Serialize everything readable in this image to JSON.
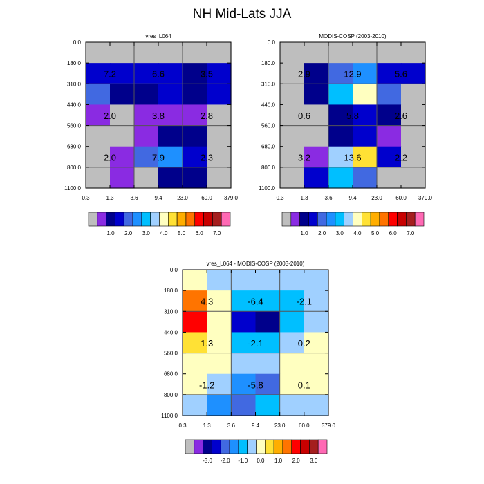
{
  "figure": {
    "title": "NH Mid-Lats JJA",
    "palette": {
      "missing": "#bebebe",
      "main_colors": [
        "#8a2be2",
        "#00008b",
        "#0000cd",
        "#4169e1",
        "#1e90ff",
        "#00bfff",
        "#a0d0ff",
        "#ffffc0",
        "#ffe135",
        "#ffae00",
        "#ff7400",
        "#ff0000",
        "#c80000",
        "#a51e1e",
        "#ff69b4"
      ],
      "diff_colors": [
        "#8a2be2",
        "#00008b",
        "#0000cd",
        "#4169e1",
        "#1e90ff",
        "#00bfff",
        "#a0d0ff",
        "#ffffc0",
        "#ffe135",
        "#ffae00",
        "#ff7400",
        "#ff0000",
        "#c80000",
        "#a51e1e",
        "#ff69b4"
      ],
      "main_color_codes": [
        "V",
        "N",
        "B",
        "R",
        "D",
        "S",
        "L",
        "Y",
        "G",
        "O",
        "o",
        "r",
        "k",
        "b",
        "P"
      ],
      "diff_color_codes": [
        "V",
        "N",
        "B",
        "R",
        "D",
        "S",
        "L",
        "Y",
        "G",
        "O",
        "o",
        "r",
        "k",
        "b",
        "P"
      ]
    },
    "main_colorbar_labels": [
      "1.0",
      "2.0",
      "3.0",
      "4.0",
      "5.0",
      "6.0",
      "7.0"
    ],
    "diff_colorbar_labels": [
      "-3.0",
      "-2.0",
      "-1.0",
      "0.0",
      "1.0",
      "2.0",
      "3.0"
    ],
    "x_ticks": [
      "0.3",
      "1.3",
      "3.6",
      "9.4",
      "23.0",
      "60.0",
      "379.0"
    ],
    "y_ticks": [
      "0.0",
      "180.0",
      "310.0",
      "440.0",
      "560.0",
      "680.0",
      "800.0",
      "1100.0"
    ]
  },
  "chart_data": [
    {
      "type": "heatmap",
      "title": "vres_L064",
      "xlabel": "",
      "ylabel": "",
      "x_bins": [
        "0.3",
        "1.3",
        "3.6",
        "9.4",
        "23.0",
        "60.0",
        "379.0"
      ],
      "y_bins": [
        "0.0",
        "180.0",
        "310.0",
        "440.0",
        "560.0",
        "680.0",
        "800.0",
        "1100.0"
      ],
      "grid": true,
      "colorbar": "main",
      "color_codes": [
        "______",
        "BBBBNB",
        "RNNBNB",
        "V_VVV_",
        "__VNN_",
        "_VRDB_",
        "_V_NN_"
      ],
      "box_labels": [
        {
          "row": 0,
          "col": 0,
          "value": "7.2"
        },
        {
          "row": 0,
          "col": 1,
          "value": "6.6"
        },
        {
          "row": 0,
          "col": 2,
          "value": "3.5"
        },
        {
          "row": 1,
          "col": 0,
          "value": "2.0"
        },
        {
          "row": 1,
          "col": 1,
          "value": "3.8"
        },
        {
          "row": 1,
          "col": 2,
          "value": "2.8"
        },
        {
          "row": 2,
          "col": 0,
          "value": "2.0"
        },
        {
          "row": 2,
          "col": 1,
          "value": "7.9"
        },
        {
          "row": 2,
          "col": 2,
          "value": "2.3"
        }
      ]
    },
    {
      "type": "heatmap",
      "title": "MODIS-COSP (2003-2010)",
      "xlabel": "",
      "ylabel": "",
      "x_bins": [
        "0.3",
        "1.3",
        "3.6",
        "9.4",
        "23.0",
        "60.0",
        "379.0"
      ],
      "y_bins": [
        "0.0",
        "180.0",
        "310.0",
        "440.0",
        "560.0",
        "680.0",
        "800.0",
        "1100.0"
      ],
      "grid": true,
      "colorbar": "main",
      "color_codes": [
        "______",
        "_NRDBB",
        "_NSYR_",
        "__NBN_",
        "__NBV_",
        "_VLGB_",
        "_BSR__"
      ],
      "box_labels": [
        {
          "row": 0,
          "col": 0,
          "value": "2.9"
        },
        {
          "row": 0,
          "col": 1,
          "value": "12.9"
        },
        {
          "row": 0,
          "col": 2,
          "value": "5.6"
        },
        {
          "row": 1,
          "col": 0,
          "value": "0.6"
        },
        {
          "row": 1,
          "col": 1,
          "value": "5.8"
        },
        {
          "row": 1,
          "col": 2,
          "value": "2.6"
        },
        {
          "row": 2,
          "col": 0,
          "value": "3.2"
        },
        {
          "row": 2,
          "col": 1,
          "value": "13.6"
        },
        {
          "row": 2,
          "col": 2,
          "value": "2.2"
        }
      ]
    },
    {
      "type": "heatmap",
      "title": "vres_L064 - MODIS-COSP (2003-2010)",
      "xlabel": "",
      "ylabel": "",
      "x_bins": [
        "0.3",
        "1.3",
        "3.6",
        "9.4",
        "23.0",
        "60.0",
        "379.0"
      ],
      "y_bins": [
        "0.0",
        "180.0",
        "310.0",
        "440.0",
        "560.0",
        "680.0",
        "800.0",
        "1100.0"
      ],
      "grid": true,
      "colorbar": "diff",
      "color_codes": [
        "YLLLLL",
        "oYSSSL",
        "rYBNSL",
        "GYSSLY",
        "YYLLYY",
        "YLDRYY",
        "LDRSLL"
      ],
      "box_labels": [
        {
          "row": 0,
          "col": 0,
          "value": "4.3"
        },
        {
          "row": 0,
          "col": 1,
          "value": "-6.4"
        },
        {
          "row": 0,
          "col": 2,
          "value": "-2.1"
        },
        {
          "row": 1,
          "col": 0,
          "value": "1.3"
        },
        {
          "row": 1,
          "col": 1,
          "value": "-2.1"
        },
        {
          "row": 1,
          "col": 2,
          "value": "0.2"
        },
        {
          "row": 2,
          "col": 0,
          "value": "-1.2"
        },
        {
          "row": 2,
          "col": 1,
          "value": "-5.8"
        },
        {
          "row": 2,
          "col": 2,
          "value": "0.1"
        }
      ]
    }
  ]
}
